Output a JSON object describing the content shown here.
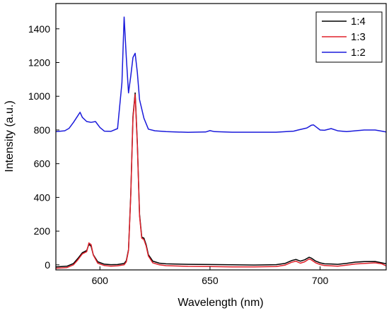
{
  "chart_data": {
    "type": "line",
    "xlabel": "Wavelength (nm)",
    "ylabel": "Intensity (a.u.)",
    "xlim": [
      580,
      730
    ],
    "ylim": [
      -30,
      1550
    ],
    "x_ticks": [
      600,
      650,
      700
    ],
    "x_tick_labels": [
      "600",
      "650",
      "700"
    ],
    "y_ticks": [
      0,
      200,
      400,
      600,
      800,
      1000,
      1200,
      1400
    ],
    "y_tick_labels": [
      "0",
      "200",
      "400",
      "600",
      "800",
      "1000",
      "1200",
      "1400"
    ],
    "legend_position": "top-right",
    "series": [
      {
        "name": "1:4",
        "color": "#000000",
        "x": [
          580,
          585,
          588,
          590,
          592,
          594,
          595,
          596,
          597,
          599,
          602,
          605,
          608,
          611,
          612,
          613,
          614,
          615,
          616,
          617,
          618,
          619,
          620,
          621,
          622,
          624,
          627,
          630,
          640,
          650,
          660,
          670,
          680,
          684,
          687,
          689,
          691,
          693,
          695,
          696,
          698,
          700,
          702,
          705,
          708,
          712,
          716,
          720,
          725,
          728,
          730
        ],
        "y": [
          -12,
          -8,
          8,
          38,
          72,
          85,
          122,
          110,
          60,
          18,
          4,
          1,
          2,
          8,
          25,
          90,
          420,
          880,
          1020,
          720,
          300,
          165,
          158,
          120,
          60,
          22,
          10,
          6,
          3,
          2,
          0,
          -1,
          1,
          8,
          25,
          32,
          22,
          30,
          45,
          40,
          22,
          12,
          6,
          5,
          3,
          9,
          16,
          19,
          20,
          12,
          6
        ]
      },
      {
        "name": "1:3",
        "color": "#e0202a",
        "x": [
          580,
          585,
          588,
          590,
          592,
          594,
          595,
          596,
          597,
          599,
          602,
          605,
          608,
          611,
          612,
          613,
          614,
          615,
          616,
          617,
          618,
          619,
          620,
          621,
          622,
          624,
          627,
          630,
          640,
          650,
          660,
          670,
          680,
          684,
          687,
          689,
          691,
          693,
          695,
          696,
          698,
          700,
          702,
          705,
          708,
          712,
          716,
          720,
          725,
          728,
          730
        ],
        "y": [
          -20,
          -16,
          0,
          30,
          65,
          78,
          130,
          120,
          58,
          10,
          -4,
          -8,
          -6,
          0,
          18,
          85,
          410,
          870,
          1010,
          710,
          290,
          158,
          150,
          112,
          52,
          12,
          0,
          -5,
          -9,
          -10,
          -12,
          -12,
          -10,
          -2,
          15,
          22,
          10,
          18,
          35,
          30,
          12,
          2,
          -4,
          -6,
          -8,
          -2,
          5,
          8,
          12,
          6,
          -6
        ]
      },
      {
        "name": "1:2",
        "color": "#1a1adb",
        "x": [
          580,
          584,
          586,
          588,
          590,
          591,
          592,
          594,
          596,
          598,
          600,
          602,
          605,
          608,
          610,
          611,
          612,
          613,
          614,
          615,
          616,
          617,
          618,
          620,
          622,
          625,
          630,
          640,
          648,
          650,
          652,
          660,
          670,
          680,
          688,
          690,
          694,
          696,
          697,
          698,
          700,
          702,
          705,
          708,
          712,
          716,
          720,
          725,
          728,
          730
        ],
        "y": [
          790,
          795,
          810,
          845,
          885,
          905,
          875,
          850,
          845,
          850,
          815,
          793,
          792,
          808,
          1080,
          1470,
          1230,
          1020,
          1120,
          1230,
          1255,
          1140,
          980,
          870,
          805,
          795,
          790,
          786,
          788,
          796,
          790,
          787,
          787,
          787,
          793,
          800,
          812,
          828,
          830,
          820,
          800,
          798,
          808,
          795,
          790,
          795,
          800,
          800,
          793,
          788
        ]
      }
    ]
  }
}
